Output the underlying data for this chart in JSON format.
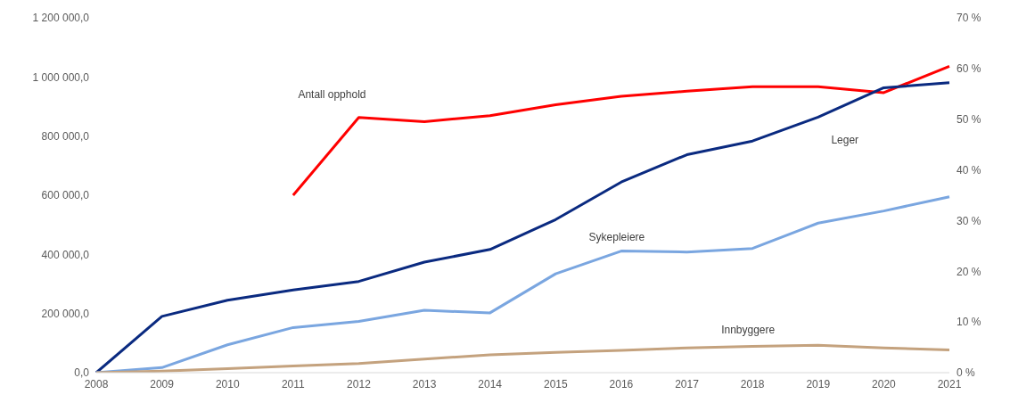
{
  "chart_data": {
    "type": "line",
    "categories": [
      "2008",
      "2009",
      "2010",
      "2011",
      "2012",
      "2013",
      "2014",
      "2015",
      "2016",
      "2017",
      "2018",
      "2019",
      "2020",
      "2021"
    ],
    "series": [
      {
        "name": "Antall opphold",
        "color": "#ff0000",
        "values": [
          null,
          null,
          null,
          600000,
          863000,
          849000,
          869000,
          906000,
          935000,
          952000,
          967000,
          967000,
          947000,
          1036000
        ]
      },
      {
        "name": "Leger",
        "color": "#0a2a80",
        "axis": "y2",
        "values": [
          0,
          11.1,
          14.3,
          16.3,
          18.0,
          21.8,
          24.3,
          30.2,
          37.6,
          43.0,
          45.7,
          50.4,
          56.2,
          57.2
        ]
      },
      {
        "name": "Sykepleiere",
        "color": "#7aa6e0",
        "axis": "y2",
        "values": [
          0,
          1.0,
          5.5,
          8.9,
          10.1,
          12.3,
          11.8,
          19.5,
          24.0,
          23.8,
          24.5,
          29.5,
          31.9,
          34.7
        ]
      },
      {
        "name": "Innbyggere",
        "color": "#c4a27e",
        "axis": "y2",
        "values": [
          0,
          0.3,
          0.8,
          1.3,
          1.8,
          2.7,
          3.5,
          4.0,
          4.4,
          4.9,
          5.2,
          5.4,
          4.9,
          4.5
        ]
      }
    ],
    "ylim": [
      0,
      1200000
    ],
    "yticks": [
      {
        "value": 0,
        "label": "0,0"
      },
      {
        "value": 200000,
        "label": "200 000,0"
      },
      {
        "value": 400000,
        "label": "400 000,0"
      },
      {
        "value": 600000,
        "label": "600 000,0"
      },
      {
        "value": 800000,
        "label": "800 000,0"
      },
      {
        "value": 1000000,
        "label": "1 000 000,0"
      },
      {
        "value": 1200000,
        "label": "1 200 000,0"
      }
    ],
    "y2lim": [
      0,
      70
    ],
    "y2ticks": [
      {
        "value": 0,
        "label": "0 %"
      },
      {
        "value": 10,
        "label": "10 %"
      },
      {
        "value": 20,
        "label": "20 %"
      },
      {
        "value": 30,
        "label": "30 %"
      },
      {
        "value": 40,
        "label": "40 %"
      },
      {
        "value": 50,
        "label": "50 %"
      },
      {
        "value": 60,
        "label": "60 %"
      },
      {
        "value": 70,
        "label": "70 %"
      }
    ],
    "grid": false,
    "legend": false,
    "marker": "none",
    "line_style": "solid"
  }
}
